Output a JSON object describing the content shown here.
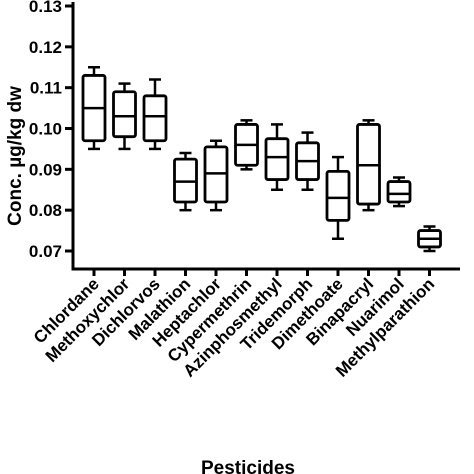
{
  "chart_data": {
    "type": "box",
    "xlabel": "Pesticides",
    "ylabel": "Conc. µg/kg dw",
    "ylim": [
      0.065,
      0.13
    ],
    "yticks": [
      0.07,
      0.08,
      0.09,
      0.1,
      0.11,
      0.12,
      0.13
    ],
    "ytick_labels": [
      "0.07",
      "0.08",
      "0.09",
      "0.10",
      "0.11",
      "0.12",
      "0.13"
    ],
    "grid": false,
    "legend": "none",
    "categories": [
      "Chlordane",
      "Methoxychlor",
      "Dichlorvos",
      "Malathion",
      "Heptachlor",
      "Cypermethrin",
      "Azinphosmethyl",
      "Tridemorph",
      "Dimethoate",
      "Binapacryl",
      "Nuarimol",
      "Methylparathion"
    ],
    "boxes": [
      {
        "min": 0.095,
        "q1": 0.097,
        "median": 0.105,
        "q3": 0.113,
        "max": 0.115
      },
      {
        "min": 0.095,
        "q1": 0.098,
        "median": 0.103,
        "q3": 0.109,
        "max": 0.111
      },
      {
        "min": 0.095,
        "q1": 0.097,
        "median": 0.103,
        "q3": 0.108,
        "max": 0.112
      },
      {
        "min": 0.08,
        "q1": 0.082,
        "median": 0.087,
        "q3": 0.0925,
        "max": 0.094
      },
      {
        "min": 0.08,
        "q1": 0.082,
        "median": 0.089,
        "q3": 0.0955,
        "max": 0.097
      },
      {
        "min": 0.09,
        "q1": 0.091,
        "median": 0.096,
        "q3": 0.101,
        "max": 0.102
      },
      {
        "min": 0.085,
        "q1": 0.0875,
        "median": 0.093,
        "q3": 0.0975,
        "max": 0.101
      },
      {
        "min": 0.085,
        "q1": 0.0875,
        "median": 0.092,
        "q3": 0.0965,
        "max": 0.099
      },
      {
        "min": 0.073,
        "q1": 0.0775,
        "median": 0.083,
        "q3": 0.0895,
        "max": 0.093
      },
      {
        "min": 0.08,
        "q1": 0.0815,
        "median": 0.091,
        "q3": 0.101,
        "max": 0.102
      },
      {
        "min": 0.081,
        "q1": 0.082,
        "median": 0.084,
        "q3": 0.087,
        "max": 0.088
      },
      {
        "min": 0.07,
        "q1": 0.071,
        "median": 0.073,
        "q3": 0.075,
        "max": 0.076
      }
    ]
  }
}
